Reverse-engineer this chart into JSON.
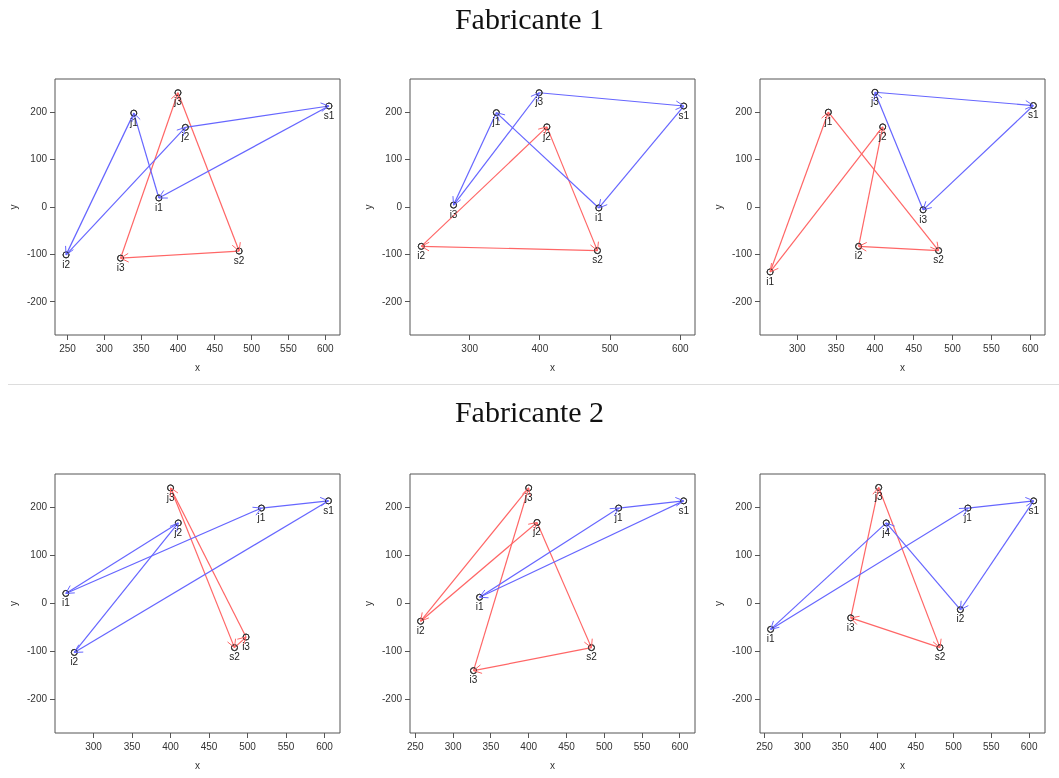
{
  "chart_data": [
    {
      "type": "other",
      "title": "Fabricante 1"
    },
    {
      "type": "line",
      "xlabel": "x",
      "ylabel": "y",
      "marker": "circle",
      "xlim": [
        233,
        620
      ],
      "xticks": [
        250,
        300,
        350,
        400,
        450,
        500,
        550,
        600
      ],
      "ylim": [
        -270,
        270
      ],
      "yticks": [
        -200,
        -100,
        0,
        100,
        200
      ],
      "series": [
        {
          "color": "#6666ff",
          "x": [
            605,
            374
          ],
          "values": [
            213,
            19
          ]
        },
        {
          "color": "#6666ff",
          "x": [
            374,
            340
          ],
          "values": [
            19,
            198
          ]
        },
        {
          "color": "#6666ff",
          "x": [
            340,
            248
          ],
          "values": [
            198,
            -101
          ]
        },
        {
          "color": "#6666ff",
          "x": [
            248,
            410
          ],
          "values": [
            -101,
            168
          ]
        },
        {
          "color": "#6666ff",
          "x": [
            410,
            605
          ],
          "values": [
            168,
            213
          ]
        },
        {
          "color": "#ff6666",
          "x": [
            483,
            322
          ],
          "values": [
            -93,
            -108
          ]
        },
        {
          "color": "#ff6666",
          "x": [
            322,
            400
          ],
          "values": [
            -108,
            241
          ]
        },
        {
          "color": "#ff6666",
          "x": [
            400,
            483
          ],
          "values": [
            241,
            -93
          ]
        }
      ],
      "annotations": [
        {
          "text": "s1",
          "x": 605,
          "y": 213
        },
        {
          "text": "i1",
          "x": 374,
          "y": 19
        },
        {
          "text": "j1",
          "x": 340,
          "y": 198
        },
        {
          "text": "i2",
          "x": 248,
          "y": -101
        },
        {
          "text": "j2",
          "x": 410,
          "y": 168
        },
        {
          "text": "s2",
          "x": 483,
          "y": -93
        },
        {
          "text": "i3",
          "x": 322,
          "y": -108
        },
        {
          "text": "j3",
          "x": 400,
          "y": 241
        }
      ]
    },
    {
      "type": "line",
      "xlabel": "x",
      "ylabel": "y",
      "marker": "circle",
      "xlim": [
        215,
        621
      ],
      "xticks": [
        300,
        400,
        500,
        600
      ],
      "ylim": [
        -270,
        270
      ],
      "yticks": [
        -200,
        -100,
        0,
        100,
        200
      ],
      "series": [
        {
          "color": "#6666ff",
          "x": [
            605,
            484
          ],
          "values": [
            213,
            -2
          ]
        },
        {
          "color": "#6666ff",
          "x": [
            484,
            338
          ],
          "values": [
            -2,
            199
          ]
        },
        {
          "color": "#6666ff",
          "x": [
            338,
            277
          ],
          "values": [
            199,
            4
          ]
        },
        {
          "color": "#6666ff",
          "x": [
            277,
            399
          ],
          "values": [
            4,
            241
          ]
        },
        {
          "color": "#6666ff",
          "x": [
            399,
            605
          ],
          "values": [
            241,
            213
          ]
        },
        {
          "color": "#ff6666",
          "x": [
            482,
            231
          ],
          "values": [
            -92,
            -83
          ]
        },
        {
          "color": "#ff6666",
          "x": [
            231,
            410
          ],
          "values": [
            -83,
            169
          ]
        },
        {
          "color": "#ff6666",
          "x": [
            410,
            482
          ],
          "values": [
            169,
            -92
          ]
        }
      ],
      "annotations": [
        {
          "text": "s1",
          "x": 605,
          "y": 213
        },
        {
          "text": "i1",
          "x": 484,
          "y": -2
        },
        {
          "text": "j1",
          "x": 338,
          "y": 199
        },
        {
          "text": "i3",
          "x": 277,
          "y": 4
        },
        {
          "text": "j3",
          "x": 399,
          "y": 241
        },
        {
          "text": "s2",
          "x": 482,
          "y": -92
        },
        {
          "text": "i2",
          "x": 231,
          "y": -83
        },
        {
          "text": "j2",
          "x": 410,
          "y": 169
        }
      ]
    },
    {
      "type": "line",
      "xlabel": "x",
      "ylabel": "y",
      "marker": "circle",
      "xlim": [
        252,
        619
      ],
      "xticks": [
        300,
        350,
        400,
        450,
        500,
        550,
        600
      ],
      "ylim": [
        -270,
        270
      ],
      "yticks": [
        -200,
        -100,
        0,
        100,
        200
      ],
      "series": [
        {
          "color": "#6666ff",
          "x": [
            604,
            462
          ],
          "values": [
            214,
            -6
          ]
        },
        {
          "color": "#6666ff",
          "x": [
            462,
            400
          ],
          "values": [
            -6,
            242
          ]
        },
        {
          "color": "#6666ff",
          "x": [
            400,
            604
          ],
          "values": [
            242,
            214
          ]
        },
        {
          "color": "#ff6666",
          "x": [
            482,
            379
          ],
          "values": [
            -92,
            -83
          ]
        },
        {
          "color": "#ff6666",
          "x": [
            379,
            410
          ],
          "values": [
            -83,
            169
          ]
        },
        {
          "color": "#ff6666",
          "x": [
            410,
            265
          ],
          "values": [
            169,
            -137
          ]
        },
        {
          "color": "#ff6666",
          "x": [
            265,
            340
          ],
          "values": [
            -137,
            200
          ]
        },
        {
          "color": "#ff6666",
          "x": [
            340,
            482
          ],
          "values": [
            200,
            -92
          ]
        }
      ],
      "annotations": [
        {
          "text": "s1",
          "x": 604,
          "y": 214
        },
        {
          "text": "i3",
          "x": 462,
          "y": -6
        },
        {
          "text": "j3",
          "x": 400,
          "y": 242
        },
        {
          "text": "s2",
          "x": 482,
          "y": -92
        },
        {
          "text": "i2",
          "x": 379,
          "y": -83
        },
        {
          "text": "j2",
          "x": 410,
          "y": 169
        },
        {
          "text": "i1",
          "x": 265,
          "y": -137
        },
        {
          "text": "j1",
          "x": 340,
          "y": 200
        }
      ]
    },
    {
      "type": "other",
      "title": "Fabricante 2"
    },
    {
      "type": "line",
      "xlabel": "x",
      "ylabel": "y",
      "marker": "circle",
      "xlim": [
        250,
        620
      ],
      "xticks": [
        300,
        350,
        400,
        450,
        500,
        550,
        600
      ],
      "ylim": [
        -270,
        270
      ],
      "yticks": [
        -200,
        -100,
        0,
        100,
        200
      ],
      "series": [
        {
          "color": "#6666ff",
          "x": [
            605,
            275
          ],
          "values": [
            214,
            -102
          ]
        },
        {
          "color": "#6666ff",
          "x": [
            275,
            410
          ],
          "values": [
            -102,
            168
          ]
        },
        {
          "color": "#6666ff",
          "x": [
            410,
            264
          ],
          "values": [
            168,
            21
          ]
        },
        {
          "color": "#6666ff",
          "x": [
            264,
            518
          ],
          "values": [
            21,
            199
          ]
        },
        {
          "color": "#6666ff",
          "x": [
            518,
            605
          ],
          "values": [
            199,
            214
          ]
        },
        {
          "color": "#ff6666",
          "x": [
            483,
            498
          ],
          "values": [
            -92,
            -70
          ]
        },
        {
          "color": "#ff6666",
          "x": [
            498,
            400
          ],
          "values": [
            -70,
            241
          ]
        },
        {
          "color": "#ff6666",
          "x": [
            400,
            483
          ],
          "values": [
            241,
            -92
          ]
        }
      ],
      "annotations": [
        {
          "text": "s1",
          "x": 605,
          "y": 214
        },
        {
          "text": "i2",
          "x": 275,
          "y": -102
        },
        {
          "text": "j2",
          "x": 410,
          "y": 168
        },
        {
          "text": "i1",
          "x": 264,
          "y": 21
        },
        {
          "text": "j1",
          "x": 518,
          "y": 199
        },
        {
          "text": "s2",
          "x": 483,
          "y": -92
        },
        {
          "text": "i3",
          "x": 498,
          "y": -70
        },
        {
          "text": "j3",
          "x": 400,
          "y": 241
        }
      ]
    },
    {
      "type": "line",
      "xlabel": "x",
      "ylabel": "y",
      "marker": "circle",
      "xlim": [
        243,
        620
      ],
      "xticks": [
        250,
        300,
        350,
        400,
        450,
        500,
        550,
        600
      ],
      "ylim": [
        -270,
        270
      ],
      "yticks": [
        -200,
        -100,
        0,
        100,
        200
      ],
      "series": [
        {
          "color": "#6666ff",
          "x": [
            605,
            335
          ],
          "values": [
            214,
            13
          ]
        },
        {
          "color": "#6666ff",
          "x": [
            335,
            519
          ],
          "values": [
            13,
            199
          ]
        },
        {
          "color": "#6666ff",
          "x": [
            519,
            605
          ],
          "values": [
            199,
            214
          ]
        },
        {
          "color": "#ff6666",
          "x": [
            483,
            327
          ],
          "values": [
            -92,
            -140
          ]
        },
        {
          "color": "#ff6666",
          "x": [
            327,
            400
          ],
          "values": [
            -140,
            241
          ]
        },
        {
          "color": "#ff6666",
          "x": [
            400,
            257
          ],
          "values": [
            241,
            -37
          ]
        },
        {
          "color": "#ff6666",
          "x": [
            257,
            411
          ],
          "values": [
            -37,
            169
          ]
        },
        {
          "color": "#ff6666",
          "x": [
            411,
            483
          ],
          "values": [
            169,
            -92
          ]
        }
      ],
      "annotations": [
        {
          "text": "s1",
          "x": 605,
          "y": 214
        },
        {
          "text": "i1",
          "x": 335,
          "y": 13
        },
        {
          "text": "j1",
          "x": 519,
          "y": 199
        },
        {
          "text": "s2",
          "x": 483,
          "y": -92
        },
        {
          "text": "i3",
          "x": 327,
          "y": -140
        },
        {
          "text": "j3",
          "x": 400,
          "y": 241
        },
        {
          "text": "i2",
          "x": 257,
          "y": -37
        },
        {
          "text": "j2",
          "x": 411,
          "y": 169
        }
      ]
    },
    {
      "type": "line",
      "xlabel": "x",
      "ylabel": "y",
      "marker": "circle",
      "xlim": [
        244,
        621
      ],
      "xticks": [
        250,
        300,
        350,
        400,
        450,
        500,
        550,
        600
      ],
      "ylim": [
        -270,
        270
      ],
      "yticks": [
        -200,
        -100,
        0,
        100,
        200
      ],
      "series": [
        {
          "color": "#6666ff",
          "x": [
            606,
            509
          ],
          "values": [
            214,
            -13
          ]
        },
        {
          "color": "#6666ff",
          "x": [
            509,
            411
          ],
          "values": [
            -13,
            168
          ]
        },
        {
          "color": "#6666ff",
          "x": [
            411,
            258
          ],
          "values": [
            168,
            -54
          ]
        },
        {
          "color": "#6666ff",
          "x": [
            258,
            519
          ],
          "values": [
            -54,
            199
          ]
        },
        {
          "color": "#6666ff",
          "x": [
            519,
            606
          ],
          "values": [
            199,
            214
          ]
        },
        {
          "color": "#ff6666",
          "x": [
            482,
            364
          ],
          "values": [
            -92,
            -30
          ]
        },
        {
          "color": "#ff6666",
          "x": [
            364,
            401
          ],
          "values": [
            -30,
            242
          ]
        },
        {
          "color": "#ff6666",
          "x": [
            401,
            482
          ],
          "values": [
            242,
            -92
          ]
        }
      ],
      "annotations": [
        {
          "text": "s1",
          "x": 606,
          "y": 214
        },
        {
          "text": "i2",
          "x": 509,
          "y": -13
        },
        {
          "text": "j4",
          "x": 411,
          "y": 168
        },
        {
          "text": "i1",
          "x": 258,
          "y": -54
        },
        {
          "text": "j1",
          "x": 519,
          "y": 199
        },
        {
          "text": "s2",
          "x": 482,
          "y": -92
        },
        {
          "text": "i3",
          "x": 364,
          "y": -30
        },
        {
          "text": "j3",
          "x": 401,
          "y": 242
        }
      ]
    }
  ]
}
